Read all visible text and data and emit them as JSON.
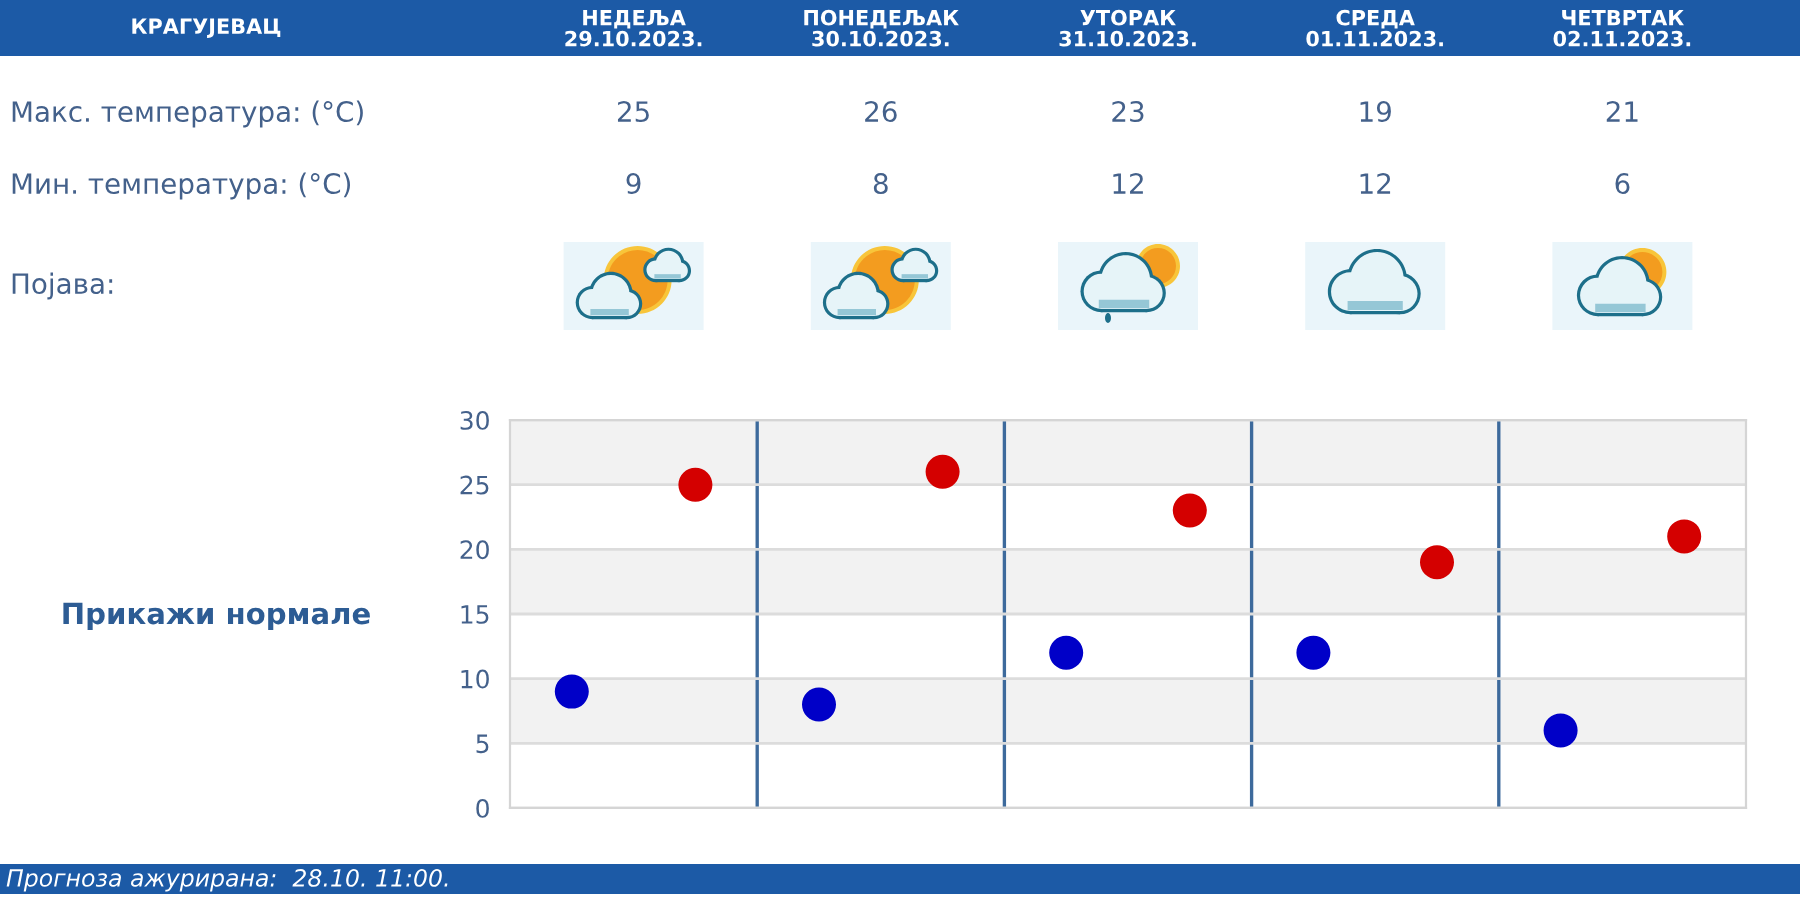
{
  "chart_data": {
    "type": "scatter",
    "title": "КРАГУЈЕВАЦ",
    "categories": [
      null,
      null,
      null,
      null,
      null
    ],
    "series": [
      {
        "color": "#d40000",
        "values": [
          25,
          26,
          23,
          19,
          21
        ]
      },
      {
        "color": "#0000c8",
        "values": [
          9,
          8,
          12,
          12,
          6
        ]
      }
    ],
    "ylim": [
      0,
      30
    ],
    "yticks": [
      0,
      5,
      10,
      15,
      20,
      25,
      30
    ],
    "tick_labels": "y",
    "grid": true,
    "marker": "circle",
    "data_labels": true,
    "bands": [
      {
        "axis": "y",
        "from": 25,
        "to": 30,
        "color": "#f2f2f2"
      },
      {
        "axis": "y",
        "from": 15,
        "to": 20,
        "color": "#f2f2f2"
      },
      {
        "axis": "y",
        "from": 5,
        "to": 10,
        "color": "#f2f2f2"
      }
    ],
    "annotations": [
      "НЕДЕЉА\n29.10.2023.",
      "ПОНЕДЕЉАК\n30.10.2023.",
      "УТОРАК\n31.10.2023.",
      "СРЕДА\n01.11.2023.",
      "ЧЕТВРТАК\n02.11.2023.",
      "Макс. температура: (°C)",
      "Мин. температура: (°C)",
      "Појава:",
      "Прикажи нормале",
      "Прогноза ажурирана:  28.10. 11:00."
    ]
  }
}
